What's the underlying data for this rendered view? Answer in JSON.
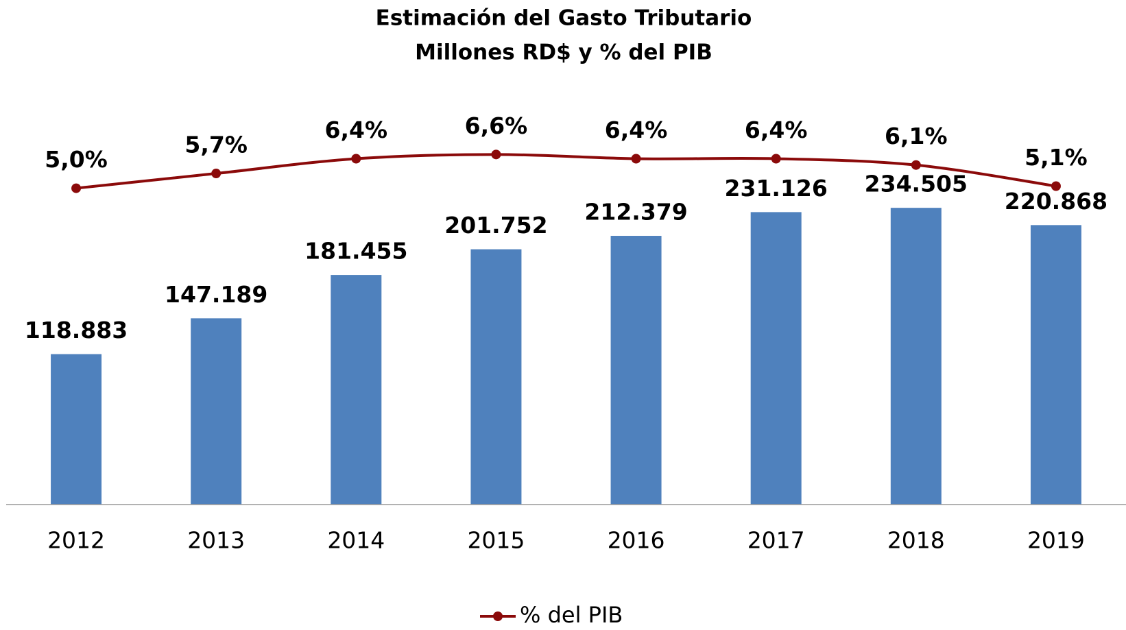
{
  "chart_data": {
    "type": "bar_line",
    "title": "Estimación del Gasto Tributario",
    "subtitle": "Millones RD$ y % del PIB",
    "categories": [
      "2012",
      "2013",
      "2014",
      "2015",
      "2016",
      "2017",
      "2018",
      "2019"
    ],
    "ylim": [
      0,
      350000
    ],
    "y2lim": [
      -10,
      11
    ],
    "series": [
      {
        "type": "bar",
        "color": "#4f81bd",
        "values": [
          118883,
          147189,
          181455,
          201752,
          212379,
          231126,
          234505,
          220868
        ],
        "value_labels": [
          "118.883",
          "147.189",
          "181.455",
          "201.752",
          "212.379",
          "231.126",
          "234.505",
          "220.868"
        ]
      },
      {
        "type": "line",
        "name": "% del PIB",
        "color": "#8b0a0a",
        "axis": "y2",
        "values": [
          5.0,
          5.7,
          6.4,
          6.6,
          6.4,
          6.4,
          6.1,
          5.1
        ],
        "value_labels": [
          "5,0%",
          "5,7%",
          "6,4%",
          "6,6%",
          "6,4%",
          "6,4%",
          "6,1%",
          "5,1%"
        ]
      }
    ],
    "legend": "bottom"
  }
}
